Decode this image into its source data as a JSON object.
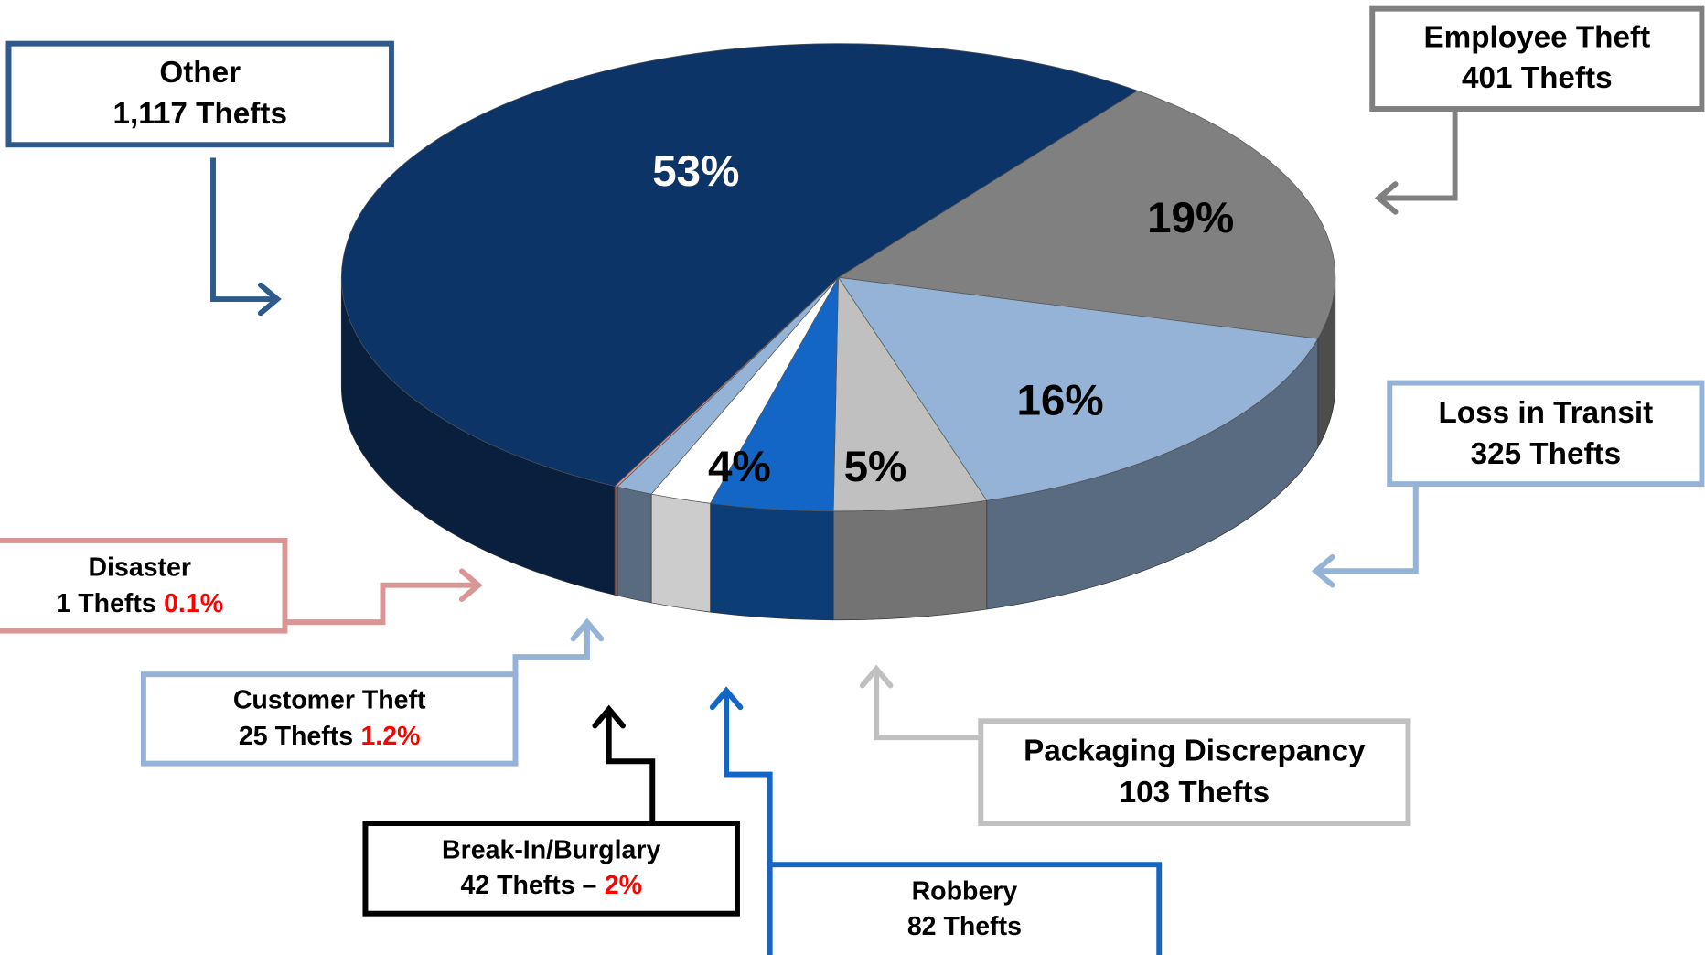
{
  "chart_data": {
    "type": "pie",
    "categories": [
      "Employee Theft",
      "Loss in Transit",
      "Packaging Discrepancy",
      "Robbery",
      "Break-In/Burglary",
      "Customer Theft",
      "Disaster",
      "Other"
    ],
    "count_labels": [
      "401 Thefts",
      "325 Thefts",
      "103 Thefts",
      "82 Thefts",
      "42 Thefts –",
      "25 Thefts",
      "1 Thefts",
      "1,117 Thefts"
    ],
    "values": [
      19,
      16,
      5,
      4,
      2,
      1.2,
      0.1,
      53
    ],
    "value_labels": [
      "19%",
      "16%",
      "5%",
      "4%",
      "2%",
      "1.2%",
      "0.1%",
      "53%"
    ],
    "colors": [
      "#808080",
      "#95b3d7",
      "#c0c0c0",
      "#1466c6",
      "#ffffff",
      "#95b3d7",
      "#d99694",
      "#0d3466"
    ]
  }
}
